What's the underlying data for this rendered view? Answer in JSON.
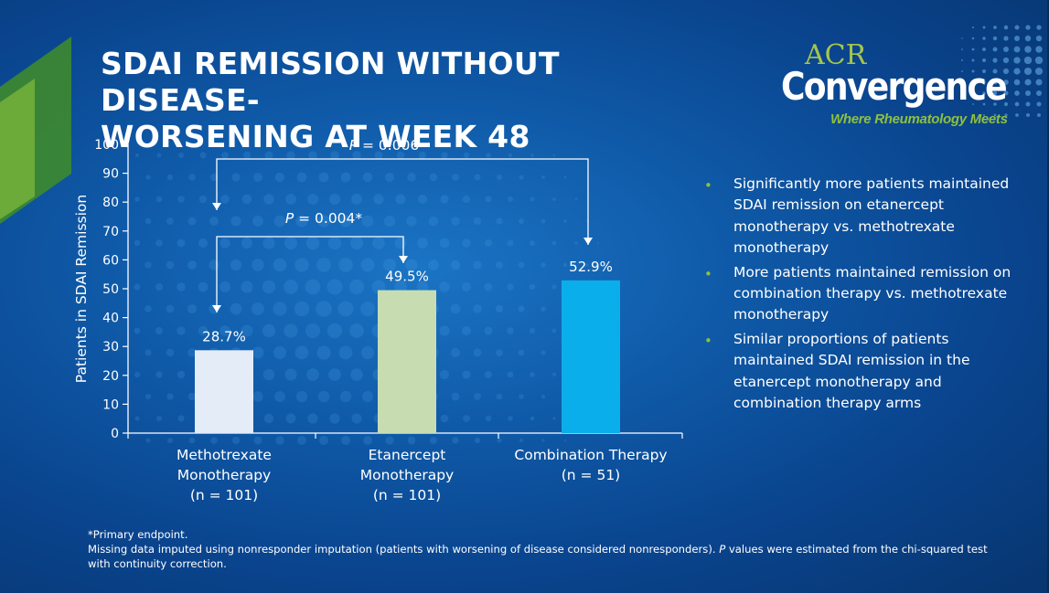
{
  "slide": {
    "title_line1": "SDAI REMISSION WITHOUT DISEASE-",
    "title_line2": "WORSENING AT WEEK 48"
  },
  "logo": {
    "acr": "ACR",
    "convergence": "Convergence",
    "tagline": "Where Rheumatology Meets"
  },
  "colors": {
    "background": "#0f5aa8",
    "accent_green": "#8fc03c"
  },
  "chart_data": {
    "type": "bar",
    "xlabel": "",
    "ylabel": "Patients in SDAI Remission",
    "ylim": [
      0,
      100
    ],
    "yticks": [
      "0",
      "10",
      "20",
      "30",
      "40",
      "50",
      "60",
      "70",
      "80",
      "90",
      "100"
    ],
    "grid": false,
    "categories": [
      [
        "Methotrexate",
        "Monotherapy",
        "(n = 101)"
      ],
      [
        "Etanercept",
        "Monotherapy",
        "(n = 101)"
      ],
      [
        "Combination Therapy",
        "(n = 51)"
      ]
    ],
    "values": [
      28.7,
      49.5,
      52.9
    ],
    "value_labels": [
      "28.7%",
      "49.5%",
      "52.9%"
    ],
    "bar_colors": [
      "#e4ecf7",
      "#c7ddb1",
      "#0aaeea"
    ],
    "comparisons": [
      {
        "from": 0,
        "to": 2,
        "label_p": "P",
        "label_rest": " = 0.006"
      },
      {
        "from": 0,
        "to": 1,
        "label_p": "P",
        "label_rest": " = 0.004*"
      }
    ]
  },
  "bullets": [
    "Significantly more patients maintained SDAI remission on etanercept monotherapy vs. methotrexate monotherapy",
    "More patients maintained remission on combination therapy vs. methotrexate monotherapy",
    "Similar proportions of patients maintained SDAI remission in the etanercept monotherapy and combination therapy arms"
  ],
  "footnotes": {
    "primary": "*Primary endpoint.",
    "missing_part1": "Missing data imputed using nonresponder imputation (patients with worsening of disease considered nonresponders).",
    "missing_p": "P",
    "missing_part2": " values were estimated from the chi-squared test with continuity correction."
  }
}
